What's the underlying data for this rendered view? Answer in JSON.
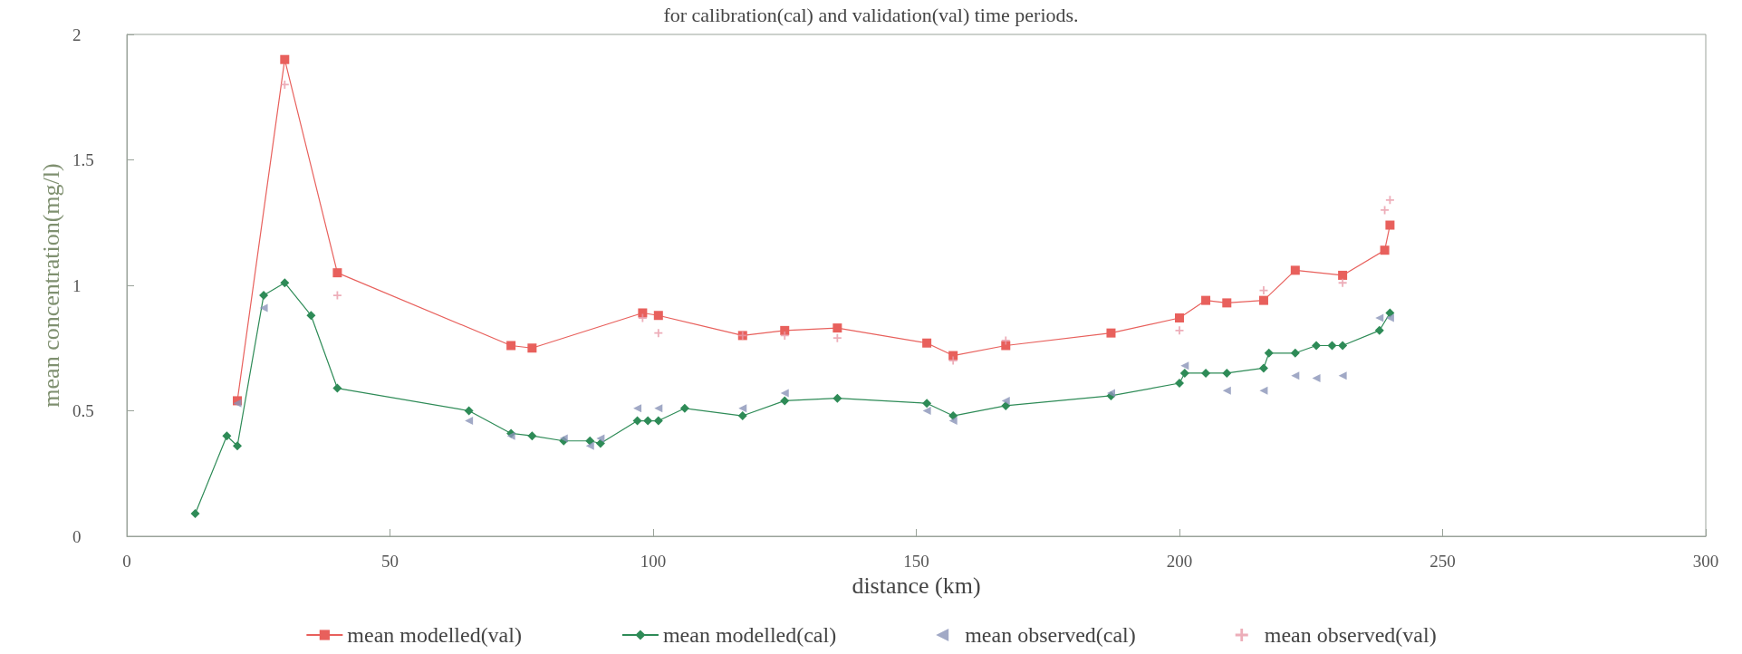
{
  "chart_data": {
    "type": "line",
    "title": "for calibration(cal) and validation(val) time periods.",
    "xlabel": "distance (km)",
    "ylabel": "mean concentration(mg/l)",
    "xlim": [
      0,
      300
    ],
    "xticks": [
      0,
      50,
      100,
      150,
      200,
      250,
      300
    ],
    "ylim": [
      0,
      2
    ],
    "yticks": [
      0,
      0.5,
      1,
      1.5,
      2
    ],
    "grid": false,
    "legend": "bottom",
    "series": [
      {
        "name": "mean modelled(val)",
        "type": "line",
        "marker": "square",
        "color": "#e8605c",
        "x": [
          21,
          30,
          40,
          73,
          77,
          98,
          101,
          117,
          125,
          135,
          152,
          157,
          167,
          187,
          200,
          205,
          209,
          216,
          222,
          231,
          239,
          240
        ],
        "values": [
          0.54,
          1.9,
          1.05,
          0.76,
          0.75,
          0.89,
          0.88,
          0.8,
          0.82,
          0.83,
          0.77,
          0.72,
          0.76,
          0.81,
          0.87,
          0.94,
          0.93,
          0.94,
          1.06,
          1.04,
          1.14,
          1.24
        ]
      },
      {
        "name": "mean modelled(cal)",
        "type": "line",
        "marker": "diamond",
        "color": "#2e8b57",
        "x": [
          13,
          19,
          21,
          26,
          30,
          35,
          40,
          65,
          73,
          77,
          83,
          88,
          90,
          97,
          99,
          101,
          106,
          117,
          125,
          135,
          152,
          157,
          167,
          187,
          200,
          201,
          205,
          209,
          216,
          217,
          222,
          226,
          229,
          231,
          238,
          240
        ],
        "values": [
          0.09,
          0.4,
          0.36,
          0.96,
          1.01,
          0.88,
          0.59,
          0.5,
          0.41,
          0.4,
          0.38,
          0.38,
          0.37,
          0.46,
          0.46,
          0.46,
          0.51,
          0.48,
          0.54,
          0.55,
          0.53,
          0.48,
          0.52,
          0.56,
          0.61,
          0.65,
          0.65,
          0.65,
          0.67,
          0.73,
          0.73,
          0.76,
          0.76,
          0.76,
          0.82,
          0.89
        ]
      },
      {
        "name": "mean observed(cal)",
        "type": "scatter",
        "marker": "triangle",
        "color": "#8a93b8",
        "x": [
          21,
          26,
          65,
          73,
          83,
          88,
          90,
          97,
          101,
          117,
          125,
          152,
          157,
          167,
          187,
          201,
          209,
          216,
          222,
          226,
          231,
          238,
          240
        ],
        "values": [
          0.53,
          0.91,
          0.46,
          0.4,
          0.39,
          0.36,
          0.39,
          0.51,
          0.51,
          0.51,
          0.57,
          0.5,
          0.46,
          0.54,
          0.57,
          0.68,
          0.58,
          0.58,
          0.64,
          0.63,
          0.64,
          0.87,
          0.87
        ]
      },
      {
        "name": "mean observed(val)",
        "type": "scatter",
        "marker": "cross",
        "color": "#e89aa8",
        "x": [
          30,
          40,
          98,
          101,
          117,
          125,
          135,
          157,
          167,
          200,
          216,
          231,
          239,
          240
        ],
        "values": [
          1.8,
          0.96,
          0.87,
          0.81,
          0.8,
          0.8,
          0.79,
          0.7,
          0.78,
          0.82,
          0.98,
          1.01,
          1.3,
          1.34
        ]
      }
    ]
  }
}
